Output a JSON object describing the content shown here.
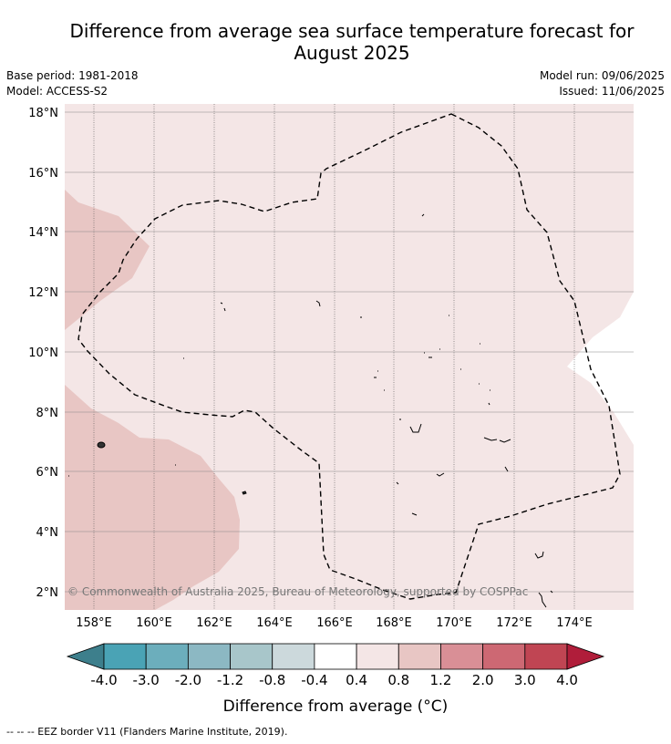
{
  "title": {
    "line1": "Difference from average sea surface temperature forecast for",
    "line2": "August 2025"
  },
  "meta": {
    "base_period": "Base period: 1981-2018",
    "model": "Model: ACCESS-S2",
    "model_run": "Model run: 09/06/2025",
    "issued": "Issued: 11/06/2025"
  },
  "map": {
    "lat_labels": [
      "18°N",
      "16°N",
      "14°N",
      "12°N",
      "10°N",
      "8°N",
      "6°N",
      "4°N",
      "2°N"
    ],
    "lat_values": [
      18,
      16,
      14,
      12,
      10,
      8,
      6,
      4,
      2
    ],
    "lon_labels": [
      "158°E",
      "160°E",
      "162°E",
      "164°E",
      "166°E",
      "168°E",
      "170°E",
      "172°E",
      "174°E"
    ],
    "lon_values": [
      158,
      160,
      162,
      164,
      166,
      168,
      170,
      172,
      174
    ],
    "copyright": "© Commonwealth of Australia 2025, Bureau of Meteorology, supported by COSPPac",
    "colors": {
      "band_0_4_to_0_8": "#f4e6e6",
      "band_0_8_to_1_2": "#e8c6c4",
      "band_neutral": "#ffffff"
    }
  },
  "colorbar": {
    "ticks": [
      "-4.0",
      "-3.0",
      "-2.0",
      "-1.2",
      "-0.8",
      "-0.4",
      "0.4",
      "0.8",
      "1.2",
      "2.0",
      "3.0",
      "4.0"
    ],
    "colors": [
      "#3d7f8c",
      "#4aa3b5",
      "#6caebc",
      "#8cb8c3",
      "#a8c6ca",
      "#ccd9dc",
      "#ffffff",
      "#f4e6e6",
      "#e8c6c4",
      "#d98f96",
      "#cd6873",
      "#c04553",
      "#b01d3a"
    ],
    "label": "Difference from average (°C)"
  },
  "footer": {
    "eez_legend": "-- -- -- EEZ border V11 (Flanders Marine Institute, 2019)."
  }
}
